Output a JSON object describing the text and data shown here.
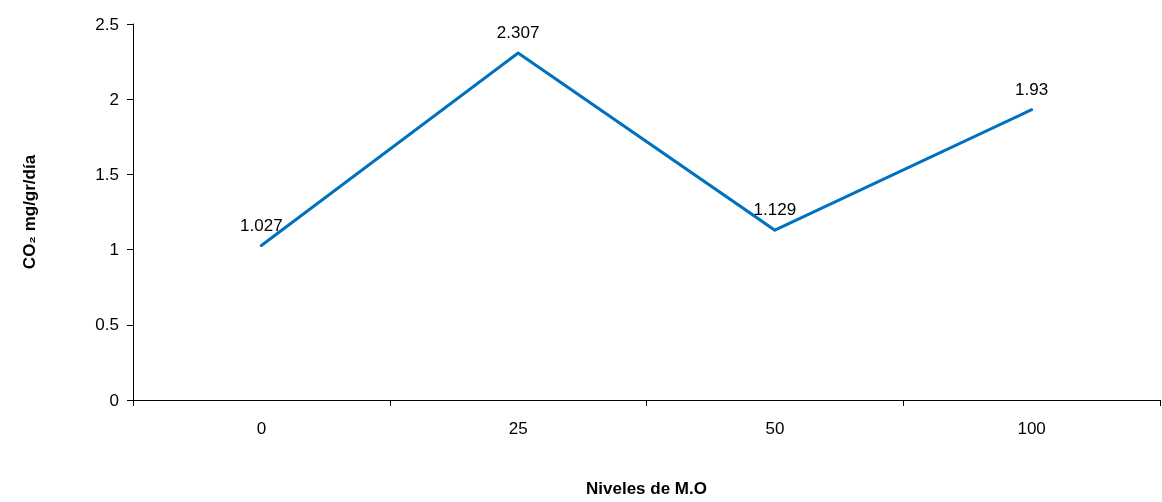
{
  "chart_data": {
    "type": "line",
    "xlabel": "Niveles de M.O",
    "ylabel": "CO₂ mg/gr/día",
    "categories": [
      "0",
      "25",
      "50",
      "100"
    ],
    "series": [
      {
        "color": "#0070c0",
        "values": [
          1.027,
          2.307,
          1.129,
          1.93
        ]
      }
    ],
    "ylim": [
      0,
      2.5
    ],
    "yticks": [
      0,
      0.5,
      1,
      1.5,
      2,
      2.5
    ],
    "grid": false,
    "marker": "none",
    "line_style": "solid",
    "data_labels": true
  }
}
